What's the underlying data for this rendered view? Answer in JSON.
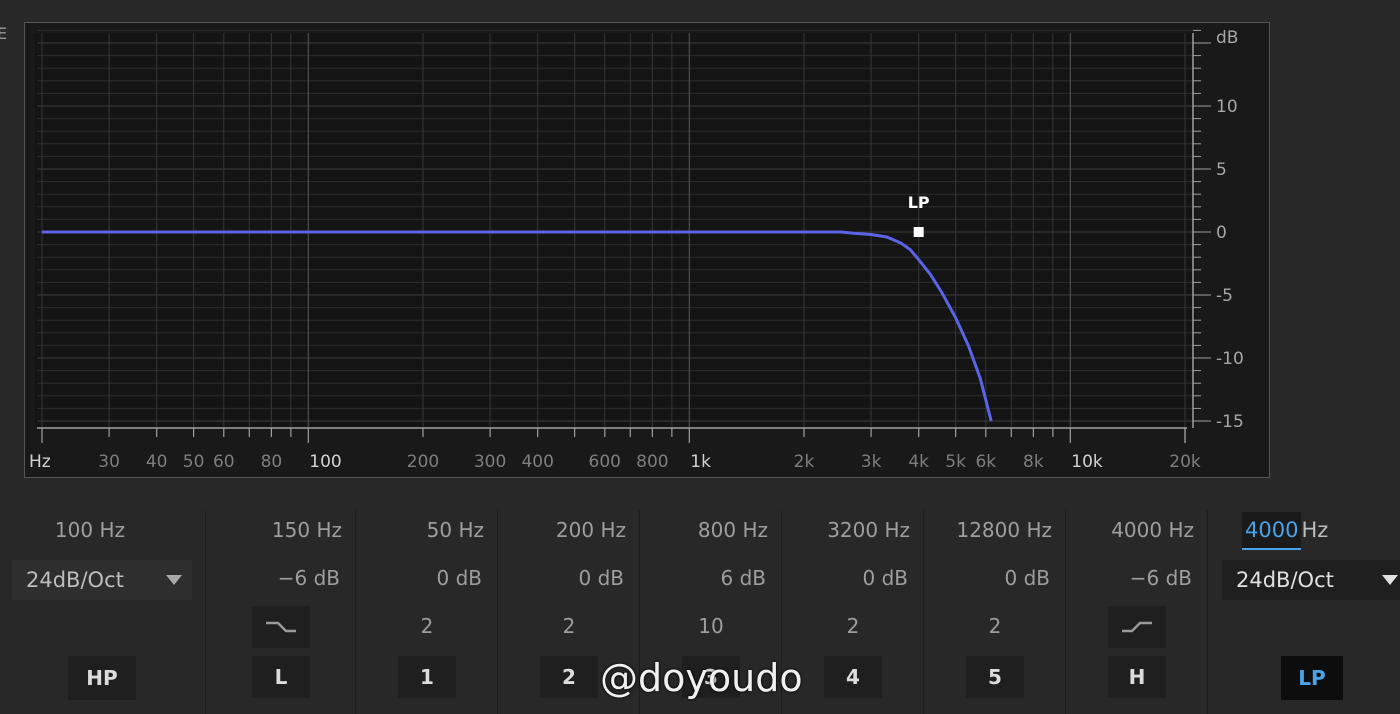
{
  "edge_mark": "E",
  "graph": {
    "x_tick_labels": [
      {
        "f": 20,
        "label": "Hz"
      },
      {
        "f": 30,
        "label": "30"
      },
      {
        "f": 40,
        "label": "40"
      },
      {
        "f": 50,
        "label": "50"
      },
      {
        "f": 60,
        "label": "60"
      },
      {
        "f": 80,
        "label": "80"
      },
      {
        "f": 100,
        "label": "100"
      },
      {
        "f": 200,
        "label": "200"
      },
      {
        "f": 300,
        "label": "300"
      },
      {
        "f": 400,
        "label": "400"
      },
      {
        "f": 600,
        "label": "600"
      },
      {
        "f": 800,
        "label": "800"
      },
      {
        "f": 1000,
        "label": "1k"
      },
      {
        "f": 2000,
        "label": "2k"
      },
      {
        "f": 3000,
        "label": "3k"
      },
      {
        "f": 4000,
        "label": "4k"
      },
      {
        "f": 5000,
        "label": "5k"
      },
      {
        "f": 6000,
        "label": "6k"
      },
      {
        "f": 8000,
        "label": "8k"
      },
      {
        "f": 10000,
        "label": "10k"
      },
      {
        "f": 20000,
        "label": "20k"
      }
    ],
    "bright_decades": [
      100,
      1000,
      10000
    ],
    "y_tick_labels": [
      {
        "v": 16,
        "label": "dB"
      },
      {
        "v": 10,
        "label": "10"
      },
      {
        "v": 5,
        "label": "5"
      },
      {
        "v": 0,
        "label": "0"
      },
      {
        "v": -5,
        "label": "-5"
      },
      {
        "v": -10,
        "label": "-10"
      },
      {
        "v": -15,
        "label": "-15"
      }
    ],
    "curve_color": "#5b64e6",
    "handle": {
      "label": "LP",
      "freq": 4000,
      "db": 0
    },
    "curve_points": [
      [
        20,
        0
      ],
      [
        2500,
        0
      ],
      [
        2700,
        -0.1
      ],
      [
        3000,
        -0.2
      ],
      [
        3300,
        -0.4
      ],
      [
        3600,
        -0.9
      ],
      [
        3800,
        -1.4
      ],
      [
        4000,
        -2.2
      ],
      [
        4300,
        -3.4
      ],
      [
        4600,
        -4.8
      ],
      [
        5000,
        -6.8
      ],
      [
        5400,
        -9
      ],
      [
        5800,
        -11.6
      ],
      [
        6200,
        -15
      ]
    ]
  },
  "bands": [
    {
      "freq": "100 Hz",
      "slope": "24dB/Oct",
      "button": "HP"
    },
    {
      "freq": "150 Hz",
      "gain": "−6 dB",
      "shape_icon": "low-shelf-icon",
      "button": "L"
    },
    {
      "freq": "50 Hz",
      "gain": "0 dB",
      "q": "2",
      "button": "1"
    },
    {
      "freq": "200 Hz",
      "gain": "0 dB",
      "q": "2",
      "button": "2"
    },
    {
      "freq": "800 Hz",
      "gain": "6 dB",
      "q": "10",
      "button": "3"
    },
    {
      "freq": "3200 Hz",
      "gain": "0 dB",
      "q": "2",
      "button": "4"
    },
    {
      "freq": "12800 Hz",
      "gain": "0 dB",
      "q": "2",
      "button": "5"
    },
    {
      "freq": "4000 Hz",
      "gain": "−6 dB",
      "shape_icon": "high-shelf-icon",
      "button": "H"
    },
    {
      "freq_value": "4000",
      "freq_unit": "Hz",
      "slope": "24dB/Oct",
      "button": "LP",
      "accent": "#4aa3e8"
    }
  ],
  "watermark": "@doyoudo"
}
